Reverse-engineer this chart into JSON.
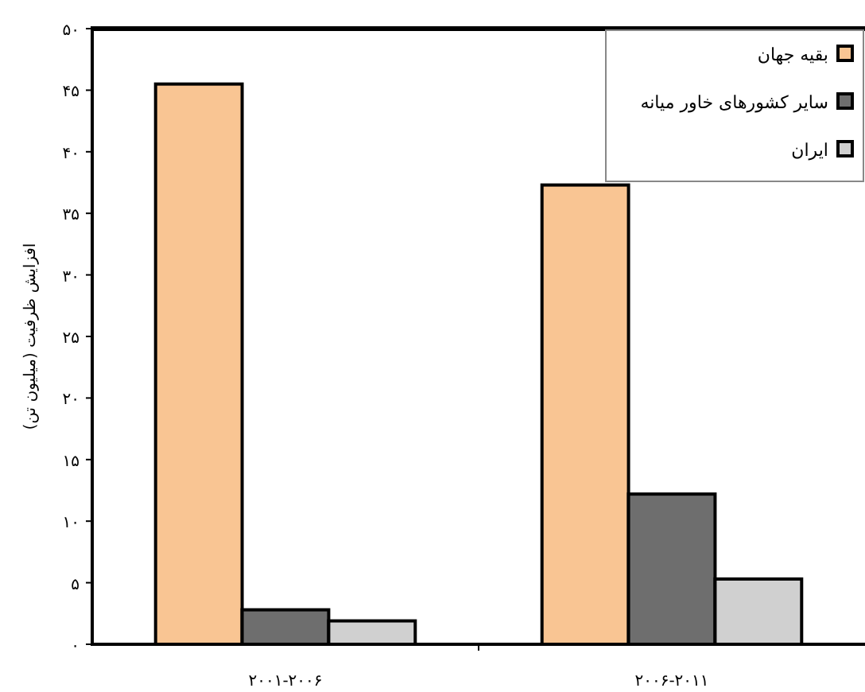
{
  "chart_data": {
    "type": "bar",
    "ylabel": "افزایش ظرفیت (میلیون تن)",
    "categories": [
      "۲۰۰۱-۲۰۰۶",
      "۲۰۰۶-۲۰۱۱"
    ],
    "series": [
      {
        "name": "بقیه جهان",
        "color": "#f9c593",
        "values": [
          45.5,
          37.3
        ]
      },
      {
        "name": "سایر کشورهای خاور میانه",
        "color": "#6e6e6e",
        "values": [
          2.8,
          12.2
        ]
      },
      {
        "name": "ایران",
        "color": "#d0d0d0",
        "values": [
          1.9,
          5.3
        ]
      }
    ],
    "ylim": [
      0,
      50
    ],
    "yticks": [
      {
        "value": 0,
        "label": "۰"
      },
      {
        "value": 5,
        "label": "۵"
      },
      {
        "value": 10,
        "label": "۱۰"
      },
      {
        "value": 15,
        "label": "۱۵"
      },
      {
        "value": 20,
        "label": "۲۰"
      },
      {
        "value": 25,
        "label": "۲۵"
      },
      {
        "value": 30,
        "label": "۳۰"
      },
      {
        "value": 35,
        "label": "۳۵"
      },
      {
        "value": 40,
        "label": "۴۰"
      },
      {
        "value": 45,
        "label": "۴۵"
      },
      {
        "value": 50,
        "label": "۵۰"
      }
    ],
    "legend": "top right",
    "grid": false
  }
}
